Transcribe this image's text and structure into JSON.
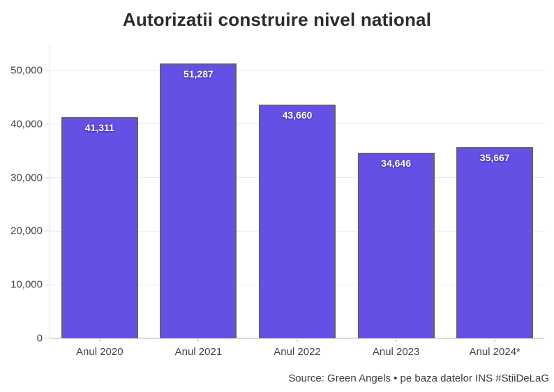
{
  "title": "Autorizatii construire nivel national",
  "source": "Source: Green Angels • pe baza datelor INS #StiiDeLaG",
  "colors": {
    "background": "#FFFFFF",
    "bar_fill": "#6550E6",
    "bar_border": "#62606E",
    "grid": "#EBEBEB",
    "baseline": "#DCDCDC",
    "axis": "#E3E3E3",
    "title_text": "#2B2B2B",
    "axis_label_text": "#444444",
    "value_label_text": "#FFFFFF"
  },
  "chart_data": {
    "type": "bar",
    "title": "Autorizatii construire nivel national",
    "categories": [
      "Anul 2020",
      "Anul 2021",
      "Anul 2022",
      "Anul 2023",
      "Anul 2024*"
    ],
    "values": [
      41311,
      51287,
      43660,
      34646,
      35667
    ],
    "value_labels": [
      "41,311",
      "51,287",
      "43,660",
      "34,646",
      "35,667"
    ],
    "xlabel": "",
    "ylabel": "",
    "ylim": [
      0,
      54700
    ],
    "yticks": [
      0,
      10000,
      20000,
      30000,
      40000,
      50000
    ],
    "ytick_labels": [
      "0",
      "10,000",
      "20,000",
      "30,000",
      "40,000",
      "50,000"
    ],
    "grid": true,
    "legend": false,
    "source_note": "Source: Green Angels • pe baza datelor INS #StiiDeLaG"
  }
}
